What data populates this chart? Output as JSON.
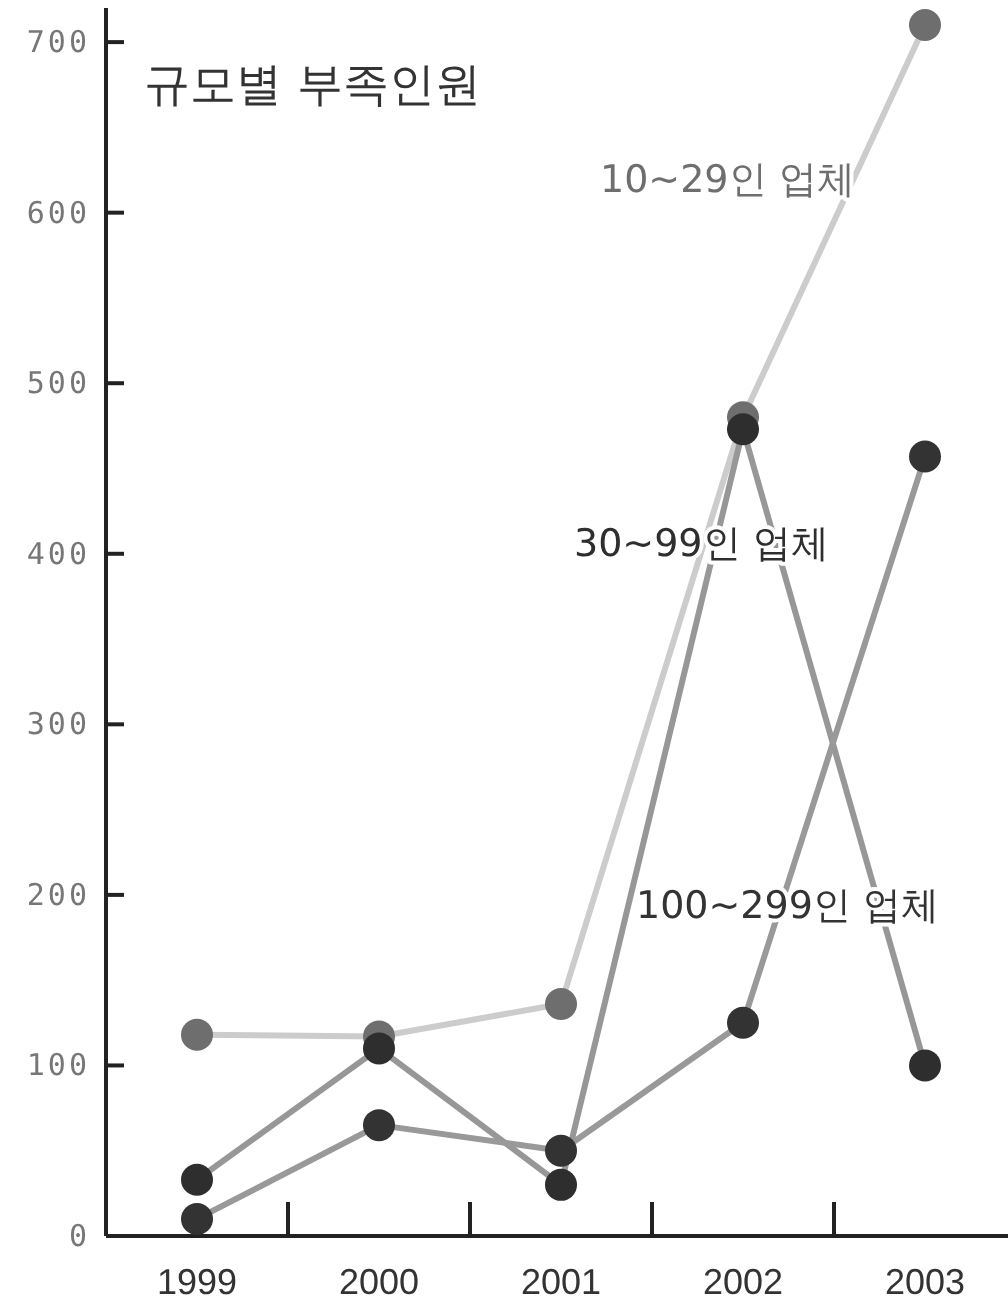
{
  "chart_data": {
    "type": "line",
    "title": "규모별 부족인원",
    "categories": [
      "1999",
      "2000",
      "2001",
      "2002",
      "2003"
    ],
    "series": [
      {
        "name": "10~29인 업체",
        "color": "#6e6e6e",
        "values": [
          118,
          117,
          136,
          480,
          710
        ]
      },
      {
        "name": "30~99인 업체",
        "color": "#2e2e2e",
        "values": [
          33,
          110,
          30,
          473,
          100
        ]
      },
      {
        "name": "100~299인 업체",
        "color": "#333333",
        "values": [
          10,
          65,
          50,
          125,
          457
        ]
      }
    ],
    "ylim": [
      0,
      720
    ],
    "yticks": [
      0,
      100,
      200,
      300,
      400,
      500,
      600,
      700
    ],
    "marker": "circle",
    "line_style": "solid",
    "grid": false
  }
}
